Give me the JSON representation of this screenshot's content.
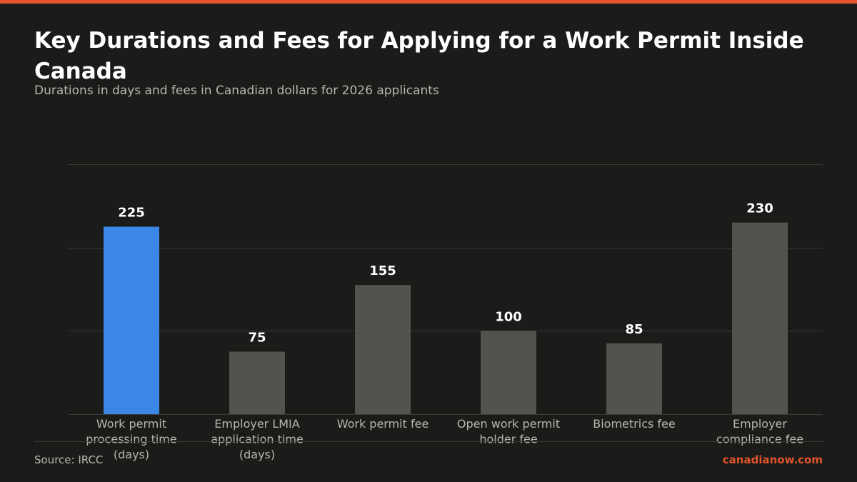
{
  "page": {
    "title": "Key Durations and Fees for Applying for a Work Permit Inside Canada",
    "subtitle": "Durations in days and fees in Canadian dollars for 2026 applicants",
    "source": "Source: IRCC",
    "brand": "canadianow.com"
  },
  "colors": {
    "background": "#1b1b19",
    "accent": "#e0552b",
    "highlight_bar": "#3a87e6",
    "default_bar": "#54524d",
    "grid": "#3a3a37",
    "value_label": "#ffffff",
    "tick_label": "#b9b5ad"
  },
  "chart_data": {
    "type": "bar",
    "categories": [
      "Work permit processing time (days)",
      "Employer LMIA application time (days)",
      "Work permit fee",
      "Open work permit holder fee",
      "Biometrics fee",
      "Employer compliance fee"
    ],
    "category_lines": [
      [
        "Work permit",
        "processing time",
        "(days)"
      ],
      [
        "Employer LMIA",
        "application time",
        "(days)"
      ],
      [
        "Work permit fee"
      ],
      [
        "Open work permit",
        "holder fee"
      ],
      [
        "Biometrics fee"
      ],
      [
        "Employer",
        "compliance fee"
      ]
    ],
    "values": [
      225,
      75,
      155,
      100,
      85,
      230
    ],
    "highlight_index": 0,
    "ylim": [
      0,
      300
    ],
    "gridlines": [
      100,
      200,
      300
    ],
    "grid": true,
    "legend": false,
    "xlabel": "",
    "ylabel": ""
  }
}
